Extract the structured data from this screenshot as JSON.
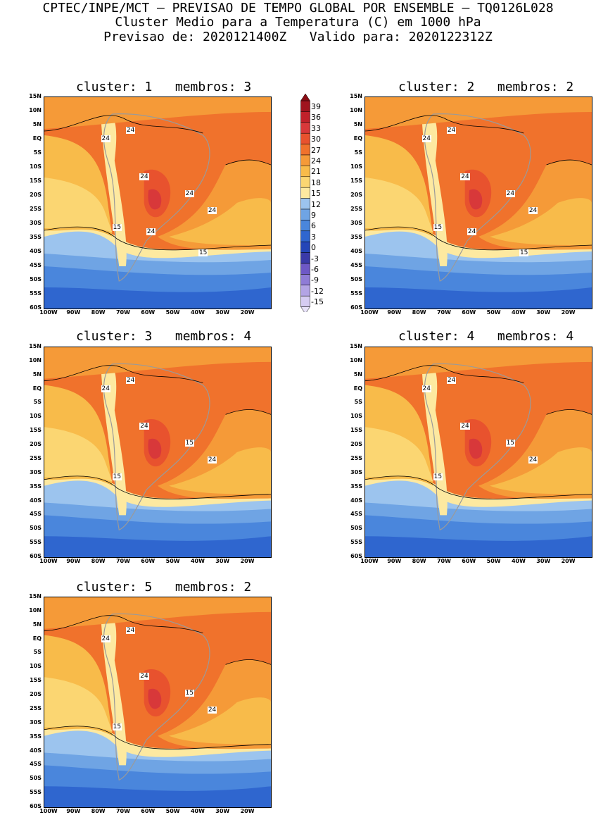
{
  "header": {
    "line1": "CPTEC/INPE/MCT — PREVISAO DE TEMPO GLOBAL POR ENSEMBLE — TQ0126L028",
    "line2": "Cluster Medio para a Temperatura (C) em 1000 hPa",
    "line3": "Previsao de: 2020121400Z   Valido para: 2020122312Z"
  },
  "panels": [
    {
      "title": "cluster: 1   membros: 3",
      "labels": [
        "24",
        "24",
        "24",
        "24",
        "24",
        "15",
        "24",
        "15"
      ]
    },
    {
      "title": "cluster: 2   membros: 2",
      "labels": [
        "24",
        "24",
        "24",
        "24",
        "24",
        "15",
        "24",
        "15"
      ]
    },
    {
      "title": "cluster: 3   membros: 4",
      "labels": [
        "24",
        "24",
        "24",
        "15",
        "24",
        "15"
      ]
    },
    {
      "title": "cluster: 4   membros: 4",
      "labels": [
        "24",
        "24",
        "24",
        "15",
        "24",
        "15"
      ]
    },
    {
      "title": "cluster: 5   membros: 2",
      "labels": [
        "24",
        "24",
        "24",
        "15",
        "24",
        "15"
      ]
    }
  ],
  "axes": {
    "lat": [
      "15N",
      "10N",
      "5N",
      "EQ",
      "5S",
      "10S",
      "15S",
      "20S",
      "25S",
      "30S",
      "35S",
      "40S",
      "45S",
      "50S",
      "55S",
      "60S"
    ],
    "lon": [
      "100W",
      "90W",
      "80W",
      "70W",
      "60W",
      "50W",
      "40W",
      "30W",
      "20W"
    ]
  },
  "colorbar": {
    "labels": [
      "39",
      "36",
      "33",
      "30",
      "27",
      "24",
      "21",
      "18",
      "15",
      "12",
      "9",
      "6",
      "3",
      "0",
      "-3",
      "-6",
      "-9",
      "-12",
      "-15"
    ],
    "colors": [
      "#a0141e",
      "#c0212a",
      "#d8383a",
      "#e8522e",
      "#f0722c",
      "#f59a38",
      "#f8bb4a",
      "#fbd672",
      "#fde9a0",
      "#9cc4ee",
      "#6fa4e4",
      "#4a86dc",
      "#2f66cf",
      "#2446b8",
      "#3a3aa8",
      "#6e58c6",
      "#8f7cd6",
      "#b3a4e4",
      "#d6ccf2"
    ]
  }
}
